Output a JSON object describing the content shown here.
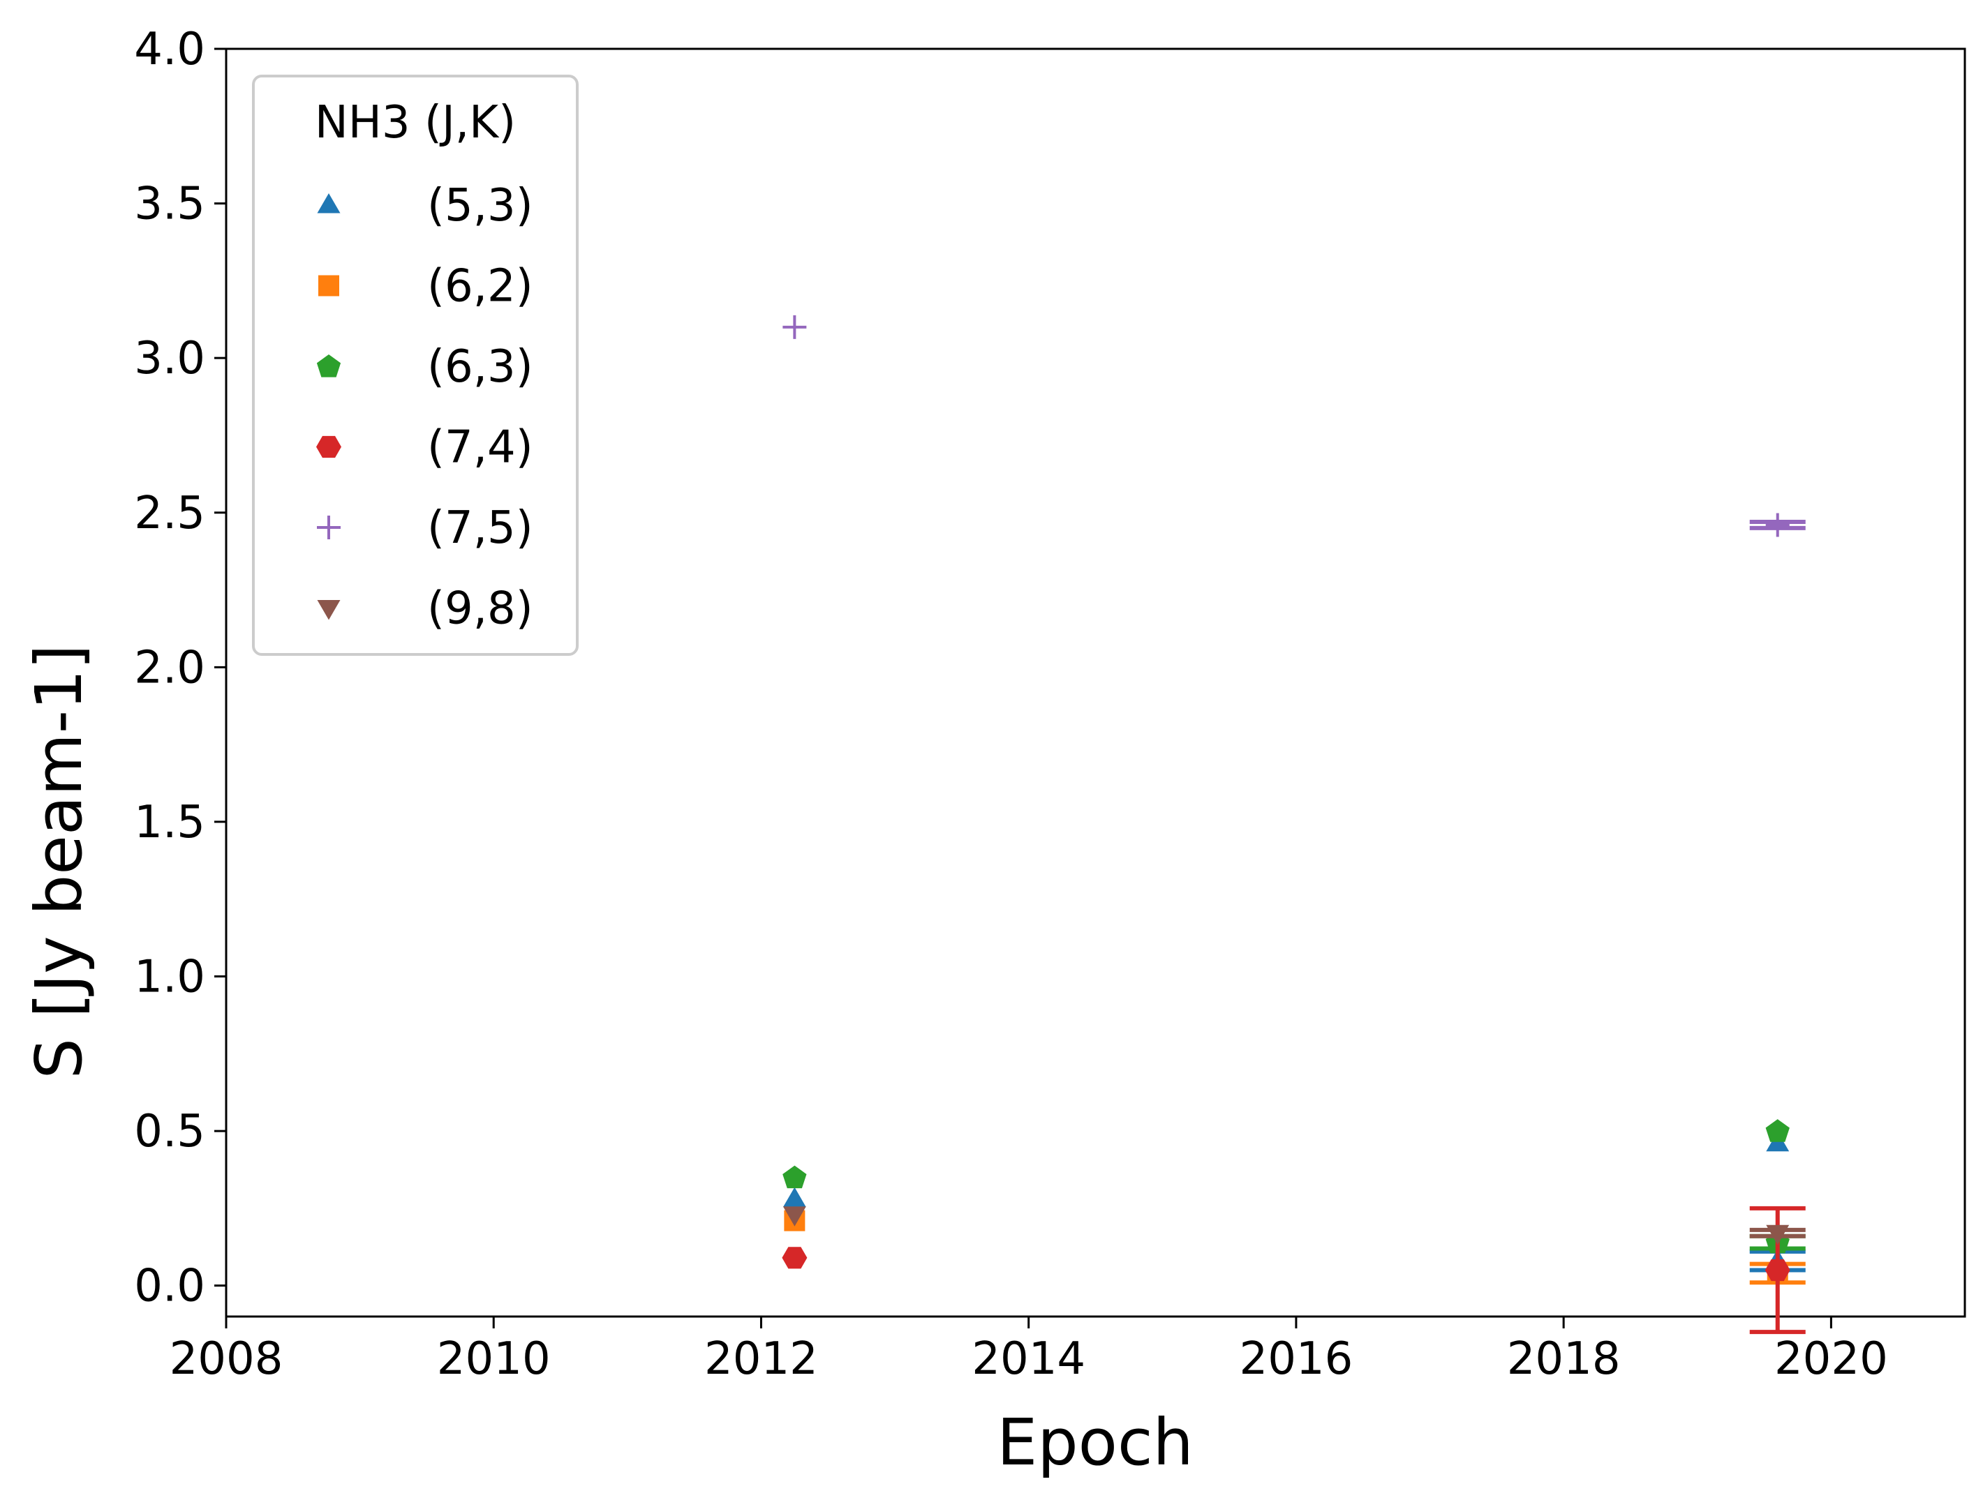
{
  "chart_data": {
    "type": "scatter",
    "title": "",
    "xlabel": "Epoch",
    "ylabel": "S [Jy beam-1]",
    "xlim": [
      2008,
      2021
    ],
    "ylim": [
      -0.1,
      4.0
    ],
    "xticks": [
      2008,
      2010,
      2012,
      2014,
      2016,
      2018,
      2020
    ],
    "xtick_labels": [
      "2008",
      "2010",
      "2012",
      "2014",
      "2016",
      "2018",
      "2020"
    ],
    "yticks": [
      0.0,
      0.5,
      1.0,
      1.5,
      2.0,
      2.5,
      3.0,
      3.5,
      4.0
    ],
    "ytick_labels": [
      "0.0",
      "0.5",
      "1.0",
      "1.5",
      "2.0",
      "2.5",
      "3.0",
      "3.5",
      "4.0"
    ],
    "grid": false,
    "legend": {
      "title": "NH3 (J,K)",
      "position": "top-left"
    },
    "series": [
      {
        "name": "(5,3)",
        "marker": "triangle-up",
        "color": "#1f77b4",
        "points": [
          {
            "x": 2012.25,
            "y": 0.28,
            "yerr": 0.0
          },
          {
            "x": 2019.6,
            "y": 0.46,
            "yerr": 0.0
          },
          {
            "x": 2019.6,
            "y": 0.08,
            "yerr": 0.03
          }
        ]
      },
      {
        "name": "(6,2)",
        "marker": "square",
        "color": "#ff7f0e",
        "points": [
          {
            "x": 2012.25,
            "y": 0.21,
            "yerr": 0.0
          },
          {
            "x": 2019.6,
            "y": 0.04,
            "yerr": 0.03
          }
        ]
      },
      {
        "name": "(6,3)",
        "marker": "pentagon",
        "color": "#2ca02c",
        "points": [
          {
            "x": 2012.25,
            "y": 0.35,
            "yerr": 0.0
          },
          {
            "x": 2019.6,
            "y": 0.5,
            "yerr": 0.0
          },
          {
            "x": 2019.6,
            "y": 0.14,
            "yerr": 0.02
          }
        ]
      },
      {
        "name": "(7,4)",
        "marker": "hexagon",
        "color": "#d62728",
        "points": [
          {
            "x": 2012.25,
            "y": 0.09,
            "yerr": 0.0
          },
          {
            "x": 2019.6,
            "y": 0.05,
            "yerr": 0.2
          }
        ]
      },
      {
        "name": "(7,5)",
        "marker": "plus",
        "color": "#9467bd",
        "points": [
          {
            "x": 2012.25,
            "y": 3.1,
            "yerr": 0.0
          },
          {
            "x": 2019.6,
            "y": 2.46,
            "yerr": 0.01
          }
        ]
      },
      {
        "name": "(9,8)",
        "marker": "triangle-down",
        "color": "#8c564b",
        "points": [
          {
            "x": 2012.25,
            "y": 0.23,
            "yerr": 0.0
          },
          {
            "x": 2019.6,
            "y": 0.17,
            "yerr": 0.01
          }
        ]
      }
    ]
  }
}
